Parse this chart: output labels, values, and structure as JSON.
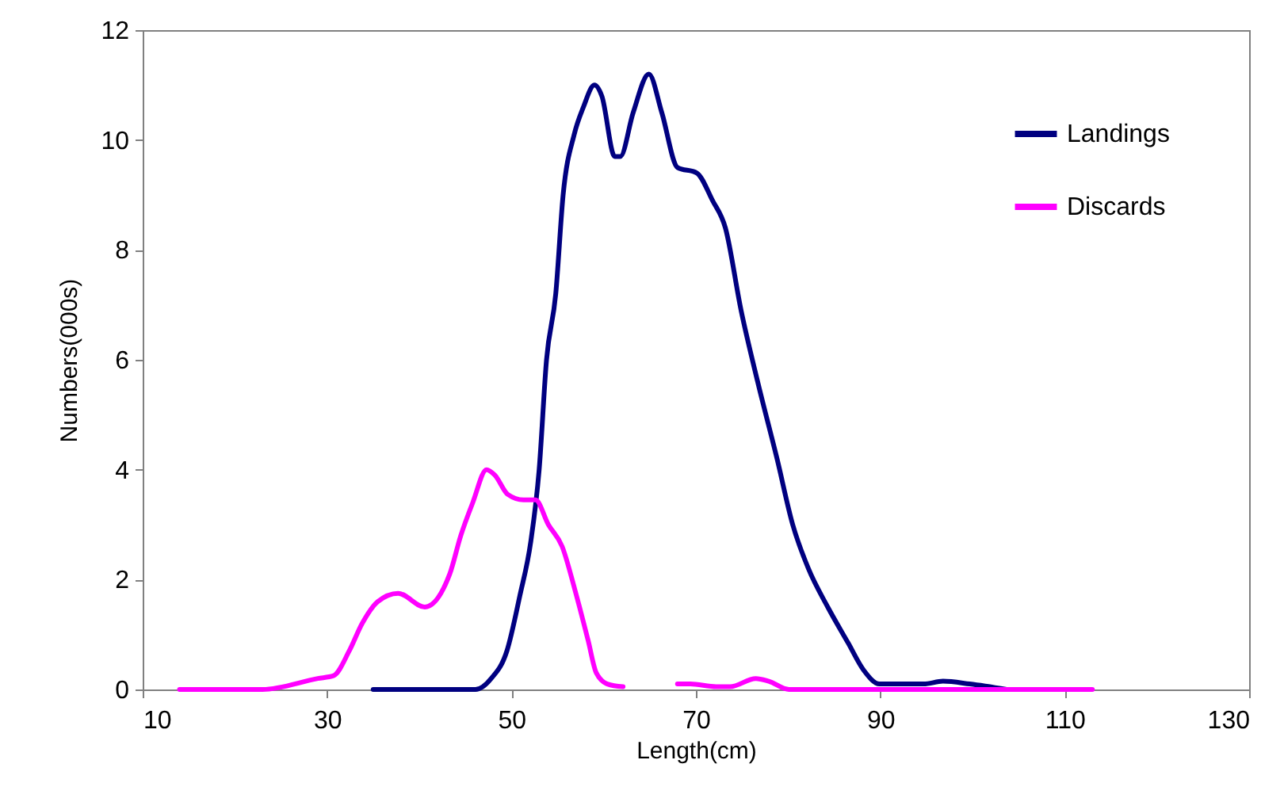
{
  "chart_data": {
    "type": "line",
    "xlabel": "Length(cm)",
    "ylabel": "Numbers(000s)",
    "xlim": [
      10,
      130
    ],
    "xticks": [
      10,
      30,
      50,
      70,
      90,
      110,
      130
    ],
    "ylim": [
      0,
      12
    ],
    "yticks": [
      0,
      2,
      4,
      6,
      8,
      10,
      12
    ],
    "grid": false,
    "legend": "top right",
    "marker": "none",
    "line_style": "solid",
    "series": [
      {
        "name": "Landings",
        "color": "#000080",
        "x": [
          35,
          46.1,
          47.8,
          49.5,
          50.9,
          52.1,
          53,
          53.8,
          54.8,
          55.6,
          56.8,
          57.8,
          59,
          59.8,
          61.2,
          61.8,
          63.2,
          64.9,
          66.3,
          68,
          70.1,
          71.8,
          73.2,
          74.9,
          76.7,
          78.8,
          80.5,
          82.2,
          84.3,
          86.5,
          88.2,
          89.9,
          94.7,
          96.8,
          99.7,
          103.7
        ],
        "values": [
          0,
          0,
          0.2,
          0.7,
          1.7,
          2.7,
          4,
          6,
          7.2,
          9,
          10.1,
          10.6,
          11,
          10.8,
          9.7,
          9.7,
          10.5,
          11.2,
          10.5,
          9.5,
          9.4,
          8.9,
          8.4,
          6.9,
          5.6,
          4.2,
          3,
          2.2,
          1.5,
          0.85,
          0.35,
          0.1,
          0.1,
          0.15,
          0.1,
          0
        ]
      },
      {
        "name": "Discards",
        "color": "#ff00ff",
        "x": [
          14,
          23,
          29,
          30.7,
          32.4,
          33.8,
          35.5,
          37.7,
          40.6,
          43.3,
          44.5,
          45.8,
          47.3,
          48.2,
          49.6,
          51.3,
          52.6,
          54,
          55.5,
          56.9,
          58.3,
          59.2,
          60.4,
          62.1,
          65,
          68,
          69.4,
          72.2,
          73.7,
          76.5,
          77.9,
          80.1,
          113
        ],
        "values": [
          0,
          0,
          0.2,
          0.25,
          0.7,
          1.2,
          1.6,
          1.75,
          1.5,
          2.1,
          2.8,
          3.4,
          4,
          3.9,
          3.55,
          3.45,
          3.45,
          3,
          2.6,
          1.8,
          0.9,
          0.3,
          0.1,
          0.05,
          null,
          0.1,
          0.1,
          0.05,
          0.05,
          0.2,
          0.15,
          0,
          0
        ]
      }
    ]
  }
}
